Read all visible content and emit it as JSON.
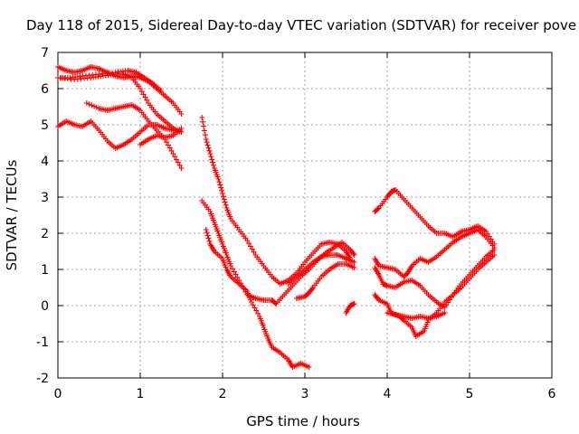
{
  "chart_data": {
    "type": "scatter",
    "title": "Day 118 of 2015, Sidereal Day-to-day VTEC variation (SDTVAR) for receiver pove",
    "xlabel": "GPS time / hours",
    "ylabel": "SDTVAR / TECUs",
    "xlim": [
      0,
      6
    ],
    "ylim": [
      -2,
      7
    ],
    "x_ticks": [
      "0",
      "1",
      "2",
      "3",
      "4",
      "5",
      "6"
    ],
    "y_ticks": [
      "-2",
      "-1",
      "0",
      "1",
      "2",
      "3",
      "4",
      "5",
      "6",
      "7"
    ],
    "grid": true,
    "marker": "+",
    "color": "#ff0000",
    "series": [
      {
        "points": [
          [
            0.0,
            6.6
          ],
          [
            0.1,
            6.5
          ],
          [
            0.2,
            6.45
          ],
          [
            0.3,
            6.5
          ],
          [
            0.4,
            6.6
          ],
          [
            0.5,
            6.55
          ],
          [
            0.6,
            6.45
          ],
          [
            0.7,
            6.35
          ],
          [
            0.8,
            6.3
          ],
          [
            0.9,
            6.35
          ],
          [
            1.0,
            6.3
          ],
          [
            1.1,
            6.2
          ],
          [
            1.2,
            6.0
          ],
          [
            1.3,
            5.8
          ],
          [
            1.4,
            5.6
          ],
          [
            1.5,
            5.3
          ]
        ]
      },
      {
        "points": [
          [
            0.0,
            6.3
          ],
          [
            0.15,
            6.3
          ],
          [
            0.3,
            6.35
          ],
          [
            0.5,
            6.4
          ],
          [
            0.7,
            6.45
          ],
          [
            0.85,
            6.5
          ],
          [
            0.95,
            6.45
          ],
          [
            1.05,
            6.3
          ],
          [
            1.15,
            6.15
          ],
          [
            1.25,
            5.95
          ]
        ]
      },
      {
        "points": [
          [
            0.0,
            6.3
          ],
          [
            0.2,
            6.25
          ],
          [
            0.4,
            6.3
          ],
          [
            0.55,
            6.35
          ],
          [
            0.7,
            6.4
          ],
          [
            0.8,
            6.4
          ],
          [
            0.9,
            6.3
          ],
          [
            1.0,
            6.0
          ],
          [
            1.1,
            5.6
          ],
          [
            1.2,
            5.3
          ],
          [
            1.3,
            5.1
          ],
          [
            1.4,
            4.9
          ],
          [
            1.5,
            4.8
          ]
        ]
      },
      {
        "points": [
          [
            0.0,
            4.95
          ],
          [
            0.1,
            5.1
          ],
          [
            0.2,
            5.0
          ],
          [
            0.3,
            4.95
          ],
          [
            0.4,
            5.1
          ],
          [
            0.5,
            4.85
          ],
          [
            0.6,
            4.55
          ],
          [
            0.7,
            4.35
          ],
          [
            0.8,
            4.45
          ],
          [
            0.9,
            4.6
          ],
          [
            1.0,
            4.8
          ],
          [
            1.1,
            5.0
          ],
          [
            1.2,
            5.0
          ],
          [
            1.3,
            4.9
          ],
          [
            1.4,
            4.85
          ],
          [
            1.5,
            4.8
          ]
        ]
      },
      {
        "points": [
          [
            0.35,
            5.6
          ],
          [
            0.5,
            5.45
          ],
          [
            0.6,
            5.4
          ],
          [
            0.7,
            5.45
          ],
          [
            0.8,
            5.5
          ],
          [
            0.9,
            5.55
          ],
          [
            1.0,
            5.4
          ],
          [
            1.1,
            5.1
          ],
          [
            1.2,
            4.85
          ],
          [
            1.3,
            4.6
          ],
          [
            1.4,
            4.2
          ],
          [
            1.5,
            3.8
          ]
        ]
      },
      {
        "points": [
          [
            1.0,
            4.45
          ],
          [
            1.1,
            4.6
          ],
          [
            1.2,
            4.7
          ],
          [
            1.3,
            4.65
          ],
          [
            1.4,
            4.7
          ],
          [
            1.5,
            4.9
          ]
        ]
      },
      {
        "points": [
          [
            1.75,
            5.2
          ],
          [
            1.8,
            4.6
          ],
          [
            1.85,
            4.2
          ],
          [
            1.9,
            3.8
          ],
          [
            1.95,
            3.5
          ],
          [
            2.0,
            3.1
          ],
          [
            2.05,
            2.7
          ],
          [
            2.1,
            2.4
          ],
          [
            2.2,
            2.1
          ],
          [
            2.3,
            1.8
          ],
          [
            2.4,
            1.4
          ],
          [
            2.5,
            1.1
          ],
          [
            2.6,
            0.8
          ],
          [
            2.7,
            0.6
          ],
          [
            2.8,
            0.7
          ],
          [
            2.9,
            0.9
          ],
          [
            3.0,
            1.2
          ],
          [
            3.1,
            1.45
          ],
          [
            3.2,
            1.7
          ],
          [
            3.3,
            1.75
          ],
          [
            3.4,
            1.7
          ],
          [
            3.5,
            1.5
          ],
          [
            3.55,
            1.3
          ]
        ]
      },
      {
        "points": [
          [
            1.75,
            2.9
          ],
          [
            1.85,
            2.6
          ],
          [
            1.9,
            2.3
          ],
          [
            1.95,
            2.0
          ],
          [
            2.0,
            1.7
          ],
          [
            2.05,
            1.4
          ],
          [
            2.1,
            1.1
          ],
          [
            2.2,
            0.7
          ],
          [
            2.3,
            0.3
          ],
          [
            2.4,
            0.2
          ],
          [
            2.5,
            0.15
          ],
          [
            2.6,
            0.15
          ],
          [
            2.65,
            0.05
          ],
          [
            2.75,
            0.3
          ],
          [
            2.85,
            0.55
          ],
          [
            2.95,
            0.8
          ],
          [
            3.05,
            1.0
          ],
          [
            3.15,
            1.25
          ],
          [
            3.25,
            1.45
          ],
          [
            3.35,
            1.6
          ],
          [
            3.45,
            1.75
          ],
          [
            3.55,
            1.55
          ],
          [
            3.6,
            1.4
          ]
        ]
      },
      {
        "points": [
          [
            1.8,
            2.1
          ],
          [
            1.85,
            1.7
          ],
          [
            1.9,
            1.5
          ],
          [
            2.0,
            1.3
          ],
          [
            2.05,
            1.0
          ],
          [
            2.1,
            0.8
          ],
          [
            2.2,
            0.6
          ],
          [
            2.3,
            0.4
          ],
          [
            2.35,
            0.1
          ],
          [
            2.45,
            -0.3
          ],
          [
            2.5,
            -0.6
          ],
          [
            2.55,
            -0.9
          ],
          [
            2.6,
            -1.15
          ],
          [
            2.7,
            -1.3
          ],
          [
            2.8,
            -1.5
          ],
          [
            2.85,
            -1.7
          ],
          [
            2.95,
            -1.6
          ],
          [
            3.05,
            -1.7
          ]
        ]
      },
      {
        "points": [
          [
            2.9,
            0.2
          ],
          [
            3.0,
            0.25
          ],
          [
            3.05,
            0.35
          ],
          [
            3.1,
            0.5
          ],
          [
            3.2,
            0.8
          ],
          [
            3.3,
            1.0
          ],
          [
            3.4,
            1.15
          ],
          [
            3.5,
            1.15
          ],
          [
            3.6,
            1.05
          ]
        ]
      },
      {
        "points": [
          [
            2.8,
            0.6
          ],
          [
            2.9,
            0.8
          ],
          [
            3.0,
            1.0
          ],
          [
            3.1,
            1.2
          ],
          [
            3.2,
            1.35
          ],
          [
            3.3,
            1.4
          ],
          [
            3.4,
            1.4
          ],
          [
            3.5,
            1.3
          ],
          [
            3.6,
            1.2
          ]
        ]
      },
      {
        "points": [
          [
            3.5,
            -0.2
          ],
          [
            3.55,
            0.0
          ],
          [
            3.6,
            0.05
          ]
        ]
      },
      {
        "points": [
          [
            3.85,
            2.6
          ],
          [
            3.9,
            2.7
          ],
          [
            4.0,
            3.0
          ],
          [
            4.05,
            3.15
          ],
          [
            4.1,
            3.2
          ],
          [
            4.2,
            2.95
          ],
          [
            4.3,
            2.7
          ],
          [
            4.4,
            2.45
          ],
          [
            4.5,
            2.2
          ],
          [
            4.6,
            2.0
          ],
          [
            4.7,
            2.0
          ],
          [
            4.8,
            1.9
          ],
          [
            4.9,
            2.05
          ],
          [
            5.0,
            2.1
          ],
          [
            5.1,
            2.2
          ],
          [
            5.2,
            2.05
          ],
          [
            5.3,
            1.7
          ]
        ]
      },
      {
        "points": [
          [
            3.85,
            1.3
          ],
          [
            3.9,
            1.1
          ],
          [
            4.0,
            1.05
          ],
          [
            4.1,
            1.0
          ],
          [
            4.2,
            0.8
          ],
          [
            4.25,
            0.9
          ],
          [
            4.3,
            1.1
          ],
          [
            4.4,
            1.3
          ],
          [
            4.5,
            1.2
          ],
          [
            4.6,
            1.35
          ],
          [
            4.7,
            1.55
          ],
          [
            4.8,
            1.75
          ],
          [
            4.9,
            1.9
          ],
          [
            5.0,
            2.0
          ],
          [
            5.1,
            2.1
          ],
          [
            5.2,
            1.9
          ],
          [
            5.3,
            1.6
          ]
        ]
      },
      {
        "points": [
          [
            3.85,
            1.05
          ],
          [
            3.9,
            0.85
          ],
          [
            3.95,
            0.6
          ],
          [
            4.0,
            0.55
          ],
          [
            4.1,
            0.5
          ],
          [
            4.2,
            0.65
          ],
          [
            4.3,
            0.7
          ],
          [
            4.4,
            0.55
          ],
          [
            4.5,
            0.3
          ],
          [
            4.6,
            0.1
          ],
          [
            4.7,
            -0.05
          ],
          [
            4.8,
            0.3
          ],
          [
            4.9,
            0.6
          ],
          [
            5.0,
            0.85
          ],
          [
            5.1,
            1.1
          ],
          [
            5.2,
            1.35
          ],
          [
            5.3,
            1.55
          ]
        ]
      },
      {
        "points": [
          [
            3.85,
            0.3
          ],
          [
            3.9,
            0.15
          ],
          [
            4.0,
            0.05
          ],
          [
            4.05,
            -0.2
          ],
          [
            4.15,
            -0.3
          ],
          [
            4.2,
            -0.4
          ],
          [
            4.3,
            -0.6
          ],
          [
            4.35,
            -0.85
          ],
          [
            4.45,
            -0.7
          ],
          [
            4.5,
            -0.4
          ],
          [
            4.6,
            -0.2
          ],
          [
            4.7,
            0.1
          ],
          [
            4.8,
            0.3
          ],
          [
            4.9,
            0.5
          ],
          [
            5.0,
            0.75
          ],
          [
            5.1,
            1.0
          ],
          [
            5.2,
            1.2
          ],
          [
            5.3,
            1.4
          ]
        ]
      },
      {
        "points": [
          [
            4.0,
            -0.2
          ],
          [
            4.1,
            -0.25
          ],
          [
            4.2,
            -0.3
          ],
          [
            4.3,
            -0.35
          ],
          [
            4.4,
            -0.3
          ],
          [
            4.5,
            -0.35
          ],
          [
            4.6,
            -0.3
          ],
          [
            4.7,
            -0.2
          ]
        ]
      }
    ]
  }
}
